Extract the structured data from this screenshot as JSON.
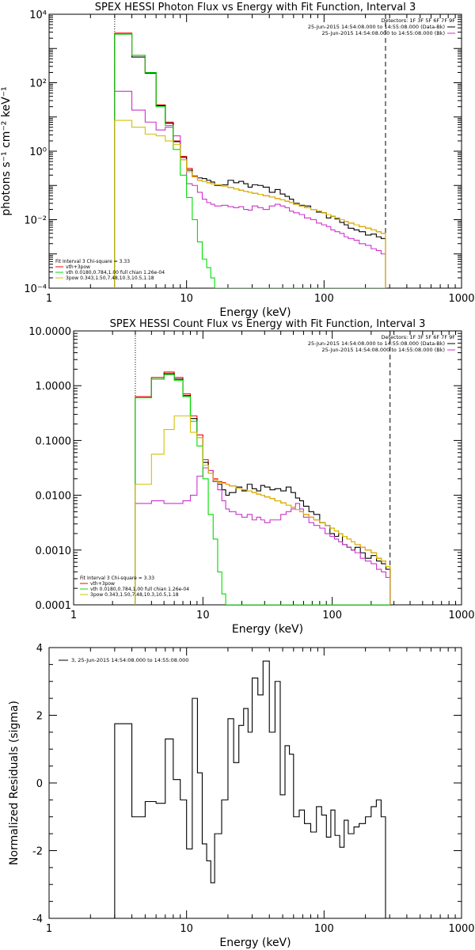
{
  "charts": [
    {
      "type": "line",
      "title": "SPEX HESSI Photon Flux vs Energy with Fit Function, Interval 3",
      "xlabel": "Energy (keV)",
      "ylabel": "photons s⁻¹ cm⁻² keV⁻¹",
      "xlim": [
        1,
        1000
      ],
      "ylim_log10": [
        -4,
        4
      ],
      "xscale": "log",
      "yscale": "log",
      "x_ticks": [
        1,
        10,
        100,
        1000
      ],
      "x_tick_labels": [
        "1",
        "10",
        "100",
        "1000"
      ],
      "y_ticks_log10": [
        -4,
        -2,
        0,
        2,
        4
      ],
      "y_tick_labels": [
        "10⁻⁴",
        "10⁻²",
        "10⁰",
        "10²",
        "10⁴"
      ],
      "top_legend_title": "Detectors: 1F 3F 5F 6F 7F 9F",
      "top_legend": [
        {
          "label": "25-Jun-2015 14:54:08.000 to 14:55:08.000 (Data-Bk)",
          "color": "#000000"
        },
        {
          "label": "25-Jun-2015 14:54:08.000 to 14:55:08.000 (Bk)",
          "color": "#cc33cc"
        }
      ],
      "bottom_legend_title": "Fit Interval 3   Chi-square = 3.33",
      "bottom_legend": [
        {
          "label": "vth+3pow",
          "color": "#ff0000"
        },
        {
          "label": "vth 0.0180,0.784,1.00  full chian 1.26e-04",
          "color": "#00dd00"
        },
        {
          "label": "3pow 0.343,1.50,7.48,10.3,10.5,1.18",
          "color": "#d4c000"
        }
      ],
      "vlines": [
        {
          "x": 3,
          "style": "dotted"
        },
        {
          "x": 280,
          "style": "dashed"
        }
      ],
      "bin_edges": [
        3,
        4,
        5,
        6,
        7,
        8,
        9,
        10,
        11,
        12,
        13,
        14,
        15,
        16,
        18,
        20,
        22,
        24,
        26,
        28,
        30,
        33,
        36,
        40,
        44,
        48,
        52,
        56,
        60,
        66,
        72,
        80,
        88,
        96,
        104,
        112,
        120,
        130,
        140,
        150,
        165,
        180,
        200,
        220,
        240,
        260,
        280
      ],
      "series": [
        {
          "name": "vth+3pow",
          "color": "#ff0000",
          "log10_values": [
            3.45,
            2.8,
            2.3,
            1.35,
            0.85,
            0.3,
            -0.15,
            -0.5,
            -0.72,
            -0.85,
            -0.88,
            -0.92,
            -0.95,
            -0.98,
            -1.02,
            -1.06,
            -1.1,
            -1.14,
            -1.17,
            -1.2,
            -1.23,
            -1.26,
            -1.3,
            -1.34,
            -1.38,
            -1.42,
            -1.46,
            -1.5,
            -1.55,
            -1.6,
            -1.65,
            -1.7,
            -1.75,
            -1.8,
            -1.85,
            -1.9,
            -1.95,
            -2.0,
            -2.05,
            -2.1,
            -2.15,
            -2.2,
            -2.25,
            -2.3,
            -2.35,
            -2.4
          ]
        },
        {
          "name": "data-bk",
          "color": "#000000",
          "log10_values": [
            3.42,
            2.75,
            2.28,
            1.33,
            0.82,
            0.28,
            -0.18,
            -0.55,
            -0.75,
            -0.78,
            -0.8,
            -0.85,
            -0.9,
            -1.0,
            -0.98,
            -0.85,
            -0.92,
            -0.88,
            -0.95,
            -1.05,
            -0.98,
            -1.0,
            -1.05,
            -1.2,
            -1.12,
            -1.25,
            -1.32,
            -1.4,
            -1.52,
            -1.58,
            -1.6,
            -1.7,
            -1.78,
            -1.8,
            -1.95,
            -1.9,
            -1.98,
            -2.08,
            -2.15,
            -2.25,
            -2.3,
            -2.35,
            -2.45,
            -2.42,
            -2.5,
            -2.55
          ]
        },
        {
          "name": "bk",
          "color": "#cc33cc",
          "log10_values": [
            1.75,
            1.2,
            0.85,
            0.62,
            0.7,
            0.45,
            -0.25,
            -0.95,
            -1.0,
            -1.2,
            -1.4,
            -1.5,
            -1.55,
            -1.6,
            -1.58,
            -1.62,
            -1.65,
            -1.62,
            -1.7,
            -1.72,
            -1.6,
            -1.65,
            -1.7,
            -1.6,
            -1.55,
            -1.6,
            -1.65,
            -1.75,
            -1.8,
            -1.85,
            -1.95,
            -2.0,
            -2.1,
            -2.15,
            -2.2,
            -2.3,
            -2.35,
            -2.4,
            -2.5,
            -2.55,
            -2.6,
            -2.7,
            -2.75,
            -2.85,
            -2.9,
            -3.0
          ]
        },
        {
          "name": "vth",
          "color": "#00dd00",
          "log10_values": [
            3.42,
            2.8,
            2.3,
            1.3,
            0.75,
            0.05,
            -0.7,
            -1.35,
            -2.0,
            -2.65,
            -3.15,
            -3.4,
            -3.7,
            -4.0,
            -4.0,
            -4.0,
            -4.0,
            -4.0,
            -4.0,
            -4.0,
            -4.0,
            -4.0,
            -4.0,
            -4.0,
            -4.0,
            -4.0,
            -4.0,
            -4.0,
            -4.0,
            -4.0,
            -4.0,
            -4.0,
            -4.0,
            -4.0,
            -4.0,
            -4.0,
            -4.0,
            -4.0,
            -4.0,
            -4.0,
            -4.0,
            -4.0,
            -4.0,
            -4.0,
            -4.0,
            -4.0
          ]
        },
        {
          "name": "3pow",
          "color": "#d4c000",
          "log10_values": [
            0.9,
            0.7,
            0.5,
            0.45,
            0.3,
            0.2,
            -0.25,
            -0.6,
            -0.75,
            -0.85,
            -0.88,
            -0.92,
            -0.95,
            -0.98,
            -1.02,
            -1.06,
            -1.1,
            -1.14,
            -1.17,
            -1.2,
            -1.23,
            -1.26,
            -1.3,
            -1.34,
            -1.38,
            -1.42,
            -1.46,
            -1.5,
            -1.55,
            -1.6,
            -1.65,
            -1.7,
            -1.75,
            -1.8,
            -1.85,
            -1.9,
            -1.95,
            -2.0,
            -2.05,
            -2.1,
            -2.15,
            -2.2,
            -2.25,
            -2.3,
            -2.35,
            -2.4
          ]
        }
      ]
    },
    {
      "type": "line",
      "title": "SPEX HESSI Count Flux vs Energy with Fit Function, Interval 3",
      "xlabel": "Energy (keV)",
      "xlim": [
        1,
        1000
      ],
      "ylim_log10": [
        -4,
        1
      ],
      "xscale": "log",
      "yscale": "log",
      "x_ticks": [
        1,
        10,
        100,
        1000
      ],
      "x_tick_labels": [
        "1",
        "10",
        "100",
        "1000"
      ],
      "y_ticks_log10": [
        -4,
        -3,
        -2,
        -1,
        0,
        1
      ],
      "y_tick_labels": [
        "0.0001",
        "0.0010",
        "0.0100",
        "0.1000",
        "1.0000",
        "10.0000"
      ],
      "top_legend_title": "Detectors: 1F 3F 5F 6F 7F 9F",
      "top_legend": [
        {
          "label": "25-Jun-2015 14:54:08.000 to 14:55:08.000 (Data-Bk)",
          "color": "#000000"
        },
        {
          "label": "25-Jun-2015 14:54:08.000 to 14:55:08.000 (Bk)",
          "color": "#cc33cc"
        }
      ],
      "bottom_legend_title": "Fit Interval 3   Chi-square = 3.33",
      "bottom_legend": [
        {
          "label": "vth+3pow",
          "color": "#ff0000"
        },
        {
          "label": "vth 0.0180,0.784,1.00  full chian 1.26e-04",
          "color": "#00dd00"
        },
        {
          "label": "3pow 0.343,1.50,7.48,10.3,10.5,1.18",
          "color": "#d4c000"
        }
      ],
      "vlines": [
        {
          "x": 3,
          "style": "dotted"
        },
        {
          "x": 280,
          "style": "dashed"
        }
      ],
      "bin_edges": [
        3,
        4,
        5,
        6,
        7,
        8,
        9,
        10,
        11,
        12,
        13,
        14,
        15,
        16,
        18,
        20,
        22,
        24,
        26,
        28,
        30,
        33,
        36,
        40,
        44,
        48,
        52,
        56,
        60,
        66,
        72,
        80,
        88,
        96,
        104,
        112,
        120,
        130,
        140,
        150,
        165,
        180,
        200,
        220,
        240,
        260,
        280
      ],
      "series": [
        {
          "name": "vth+3pow",
          "color": "#ff0000",
          "log10_values": [
            -0.2,
            0.15,
            0.25,
            0.15,
            -0.15,
            -0.55,
            -0.9,
            -1.35,
            -1.55,
            -1.7,
            -1.75,
            -1.77,
            -1.8,
            -1.83,
            -1.87,
            -1.9,
            -1.92,
            -1.95,
            -1.98,
            -2.0,
            -2.03,
            -2.06,
            -2.1,
            -2.14,
            -2.18,
            -2.22,
            -2.26,
            -2.3,
            -2.35,
            -2.4,
            -2.45,
            -2.5,
            -2.55,
            -2.6,
            -2.65,
            -2.7,
            -2.75,
            -2.8,
            -2.85,
            -2.9,
            -2.95,
            -3.0,
            -3.05,
            -3.15,
            -3.2,
            -3.3
          ]
        },
        {
          "name": "data-bk",
          "color": "#000000",
          "log10_values": [
            -0.22,
            0.12,
            0.22,
            0.12,
            -0.18,
            -0.6,
            -0.95,
            -1.4,
            -1.6,
            -1.75,
            -1.8,
            -1.9,
            -2.0,
            -1.95,
            -1.85,
            -1.92,
            -1.8,
            -1.88,
            -1.92,
            -1.82,
            -1.85,
            -1.9,
            -1.88,
            -1.92,
            -1.85,
            -1.95,
            -2.05,
            -2.1,
            -2.2,
            -2.3,
            -2.35,
            -2.5,
            -2.55,
            -2.7,
            -2.75,
            -2.7,
            -2.9,
            -2.95,
            -3.0,
            -2.95,
            -3.05,
            -3.15,
            -3.1,
            -3.2,
            -3.25,
            -3.35
          ]
        },
        {
          "name": "bk",
          "color": "#cc33cc",
          "log10_values": [
            -2.15,
            -2.1,
            -2.15,
            -2.15,
            -2.1,
            -2.0,
            -1.65,
            -1.5,
            -1.55,
            -1.75,
            -1.9,
            -2.1,
            -2.25,
            -2.3,
            -2.35,
            -2.4,
            -2.35,
            -2.45,
            -2.4,
            -2.45,
            -2.5,
            -2.45,
            -2.45,
            -2.35,
            -2.3,
            -2.25,
            -2.15,
            -2.25,
            -2.4,
            -2.5,
            -2.55,
            -2.6,
            -2.7,
            -2.75,
            -2.8,
            -2.85,
            -2.9,
            -2.95,
            -3.0,
            -3.05,
            -3.15,
            -3.2,
            -3.25,
            -3.35,
            -3.4,
            -3.5
          ]
        },
        {
          "name": "vth",
          "color": "#00dd00",
          "log10_values": [
            -0.22,
            0.12,
            0.2,
            0.1,
            -0.2,
            -0.65,
            -1.1,
            -1.7,
            -2.35,
            -2.8,
            -3.4,
            -3.8,
            -4.0,
            -4.0,
            -4.0,
            -4.0,
            -4.0,
            -4.0,
            -4.0,
            -4.0,
            -4.0,
            -4.0,
            -4.0,
            -4.0,
            -4.0,
            -4.0,
            -4.0,
            -4.0,
            -4.0,
            -4.0,
            -4.0,
            -4.0,
            -4.0,
            -4.0,
            -4.0,
            -4.0,
            -4.0,
            -4.0,
            -4.0,
            -4.0,
            -4.0,
            -4.0,
            -4.0,
            -4.0,
            -4.0,
            -4.0
          ]
        },
        {
          "name": "3pow",
          "color": "#d4c000",
          "log10_values": [
            -1.8,
            -1.25,
            -0.8,
            -0.55,
            -0.55,
            -0.85,
            -0.95,
            -1.45,
            -1.6,
            -1.72,
            -1.77,
            -1.78,
            -1.8,
            -1.83,
            -1.87,
            -1.9,
            -1.92,
            -1.95,
            -1.98,
            -2.0,
            -2.03,
            -2.06,
            -2.1,
            -2.14,
            -2.18,
            -2.22,
            -2.26,
            -2.3,
            -2.35,
            -2.4,
            -2.45,
            -2.5,
            -2.55,
            -2.6,
            -2.65,
            -2.7,
            -2.75,
            -2.8,
            -2.85,
            -2.9,
            -2.95,
            -3.0,
            -3.05,
            -3.15,
            -3.2,
            -3.3
          ]
        }
      ]
    },
    {
      "type": "line",
      "title": "",
      "xlabel": "Energy (keV)",
      "ylabel": "Normalized Residuals (sigma)",
      "xlim": [
        1,
        1000
      ],
      "ylim": [
        -4,
        4
      ],
      "xscale": "log",
      "yscale": "linear",
      "x_ticks": [
        1,
        10,
        100,
        1000
      ],
      "x_tick_labels": [
        "1",
        "10",
        "100",
        "1000"
      ],
      "y_ticks": [
        -4,
        -2,
        0,
        2,
        4
      ],
      "y_tick_labels": [
        "-4",
        "-2",
        "0",
        "2",
        "4"
      ],
      "top_legend_title": "",
      "top_legend": [
        {
          "label": "3, 25-Jun-2015 14:54:08.000 to 14:55:08.000",
          "color": "#000000"
        }
      ],
      "bin_edges": [
        3,
        4,
        5,
        6,
        7,
        8,
        9,
        10,
        11,
        12,
        13,
        14,
        15,
        16,
        18,
        20,
        22,
        24,
        26,
        28,
        30,
        33,
        36,
        40,
        44,
        48,
        52,
        56,
        60,
        66,
        72,
        80,
        88,
        96,
        104,
        112,
        120,
        130,
        140,
        150,
        165,
        180,
        200,
        220,
        240,
        260,
        280
      ],
      "series": [
        {
          "name": "residuals",
          "color": "#000000",
          "values": [
            1.75,
            -1.0,
            -0.55,
            -0.6,
            1.3,
            0.1,
            -0.5,
            -1.95,
            2.5,
            0.3,
            -1.8,
            -2.3,
            -2.95,
            -1.5,
            -0.5,
            1.9,
            0.6,
            1.7,
            2.2,
            1.5,
            3.1,
            2.6,
            3.6,
            1.5,
            3.0,
            -0.35,
            1.1,
            0.85,
            -1.0,
            -0.8,
            -1.2,
            -1.45,
            -0.7,
            -0.95,
            -1.6,
            -0.8,
            -1.55,
            -1.9,
            -1.1,
            -1.5,
            -1.3,
            -1.2,
            -1.0,
            -0.7,
            -0.5,
            -1.0
          ]
        }
      ]
    }
  ]
}
